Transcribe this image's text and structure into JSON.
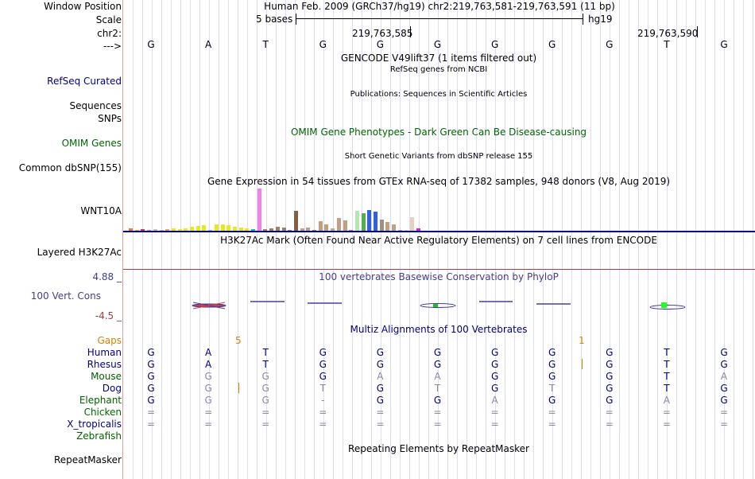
{
  "header": {
    "window_position_label": "Window Position",
    "scale_label": "Scale",
    "chr_label": "chr2:",
    "strand_label": "--->",
    "position_text": "Human Feb. 2009 (GRCh37/hg19)   chr2:219,763,581-219,763,591 (11 bp)",
    "scale_text": "5 bases",
    "assembly": "hg19",
    "coord1": "219,763,585",
    "coord2": "219,763,590"
  },
  "sequence": [
    "G",
    "A",
    "T",
    "G",
    "G",
    "G",
    "G",
    "G",
    "G",
    "T",
    "G"
  ],
  "tracks": {
    "gencode_title": "GENCODE V49lift37 (1 items filtered out)",
    "refseq_sub": "RefSeq genes from NCBI",
    "refseq_label": "RefSeq Curated",
    "pubs_sub": "Publications: Sequences in Scientific Articles",
    "sequences_label": "Sequences",
    "snps_label": "SNPs",
    "omim_title": "OMIM Gene Phenotypes - Dark Green Can Be Disease-causing",
    "omim_label": "OMIM Genes",
    "dbsnp_sub": "Short Genetic Variants from dbSNP release 155",
    "dbsnp_label": "Common dbSNP(155)",
    "gtex_title": "Gene Expression in 54 tissues from GTEx RNA-seq of 17382 samples, 948 donors (V8, Aug 2019)",
    "gtex_label": "WNT10A",
    "h3k27_title": "H3K27Ac Mark (Often Found Near Active Regulatory Elements) on 7 cell lines from ENCODE",
    "h3k27_label": "Layered H3K27Ac",
    "cons_max": "4.88 _",
    "cons_title": "100 vertebrates Basewise Conservation by PhyloP",
    "cons_label": "100 Vert. Cons",
    "cons_min": "-4.5 _",
    "multiz_title": "Multiz Alignments of 100 Vertebrates",
    "gaps_label": "Gaps",
    "gap_a": "5",
    "gap_b": "1",
    "rm_title": "Repeating Elements by RepeatMasker",
    "rm_label": "RepeatMasker"
  },
  "gtex_values": [
    3,
    1,
    2,
    1,
    2,
    1,
    2,
    3,
    2,
    3,
    5,
    6,
    7,
    1,
    8,
    8,
    7,
    5,
    4,
    3,
    2,
    52,
    2,
    3,
    5,
    4,
    1,
    25,
    3,
    4,
    1,
    12,
    8,
    3,
    16,
    13,
    1,
    25,
    22,
    26,
    24,
    14,
    11,
    8,
    1,
    1,
    17,
    3
  ],
  "gtex_colors": [
    "#e08030",
    "#ffb000",
    "#cc3333",
    "#f080a0",
    "#c0c0a0",
    "#c0c0a0",
    "#dda080",
    "#e8e820",
    "#e8e820",
    "#e8e820",
    "#e8e820",
    "#e8e820",
    "#e8e820",
    "#b0b0ff",
    "#e8e820",
    "#e8e820",
    "#e8e820",
    "#e8e820",
    "#e8e820",
    "#e8e820",
    "#00c0c0",
    "#ee82ee",
    "#a08060",
    "#a08060",
    "#a08060",
    "#a08060",
    "#a08060",
    "#806040",
    "#c0a080",
    "#c0a080",
    "#a08060",
    "#c0a080",
    "#c0a080",
    "#b0b090",
    "#c0a080",
    "#c0a080",
    "#ff60a0",
    "#b0e8b0",
    "#50b050",
    "#3060e0",
    "#3060e0",
    "#a09080",
    "#c0a080",
    "#c0a080",
    "#c0a080",
    "#ffd0d0",
    "#e8d0c0",
    "#dd22cc"
  ],
  "species": [
    {
      "name": "Human",
      "color": "#000080",
      "bases": [
        "G",
        "A",
        "T",
        "G",
        "G",
        "G",
        "G",
        "G",
        "G",
        "T",
        "G"
      ]
    },
    {
      "name": "Rhesus",
      "color": "#000080",
      "bases": [
        "G",
        "A",
        "T",
        "G",
        "G",
        "G",
        "G",
        "G",
        "G",
        "T",
        "G"
      ]
    },
    {
      "name": "Mouse",
      "color": "#006400",
      "bases": [
        "G",
        "G",
        "G",
        "G",
        "A",
        "A",
        "G",
        "G",
        "G",
        "T",
        "A"
      ]
    },
    {
      "name": "Dog",
      "color": "#000080",
      "bases": [
        "G",
        "G",
        "G",
        "T",
        "G",
        "T",
        "G",
        "T",
        "G",
        "T",
        "G"
      ]
    },
    {
      "name": "Elephant",
      "color": "#006400",
      "bases": [
        "G",
        "G",
        "G",
        "-",
        "G",
        "G",
        "A",
        "G",
        "G",
        "A",
        "G"
      ]
    },
    {
      "name": "Chicken",
      "color": "#006400",
      "bases": [
        "=",
        "=",
        "=",
        "=",
        "=",
        "=",
        "=",
        "=",
        "=",
        "=",
        "="
      ]
    },
    {
      "name": "X_tropicalis",
      "color": "#000080",
      "bases": [
        "=",
        "=",
        "=",
        "=",
        "=",
        "=",
        "=",
        "=",
        "=",
        "=",
        "="
      ]
    },
    {
      "name": "Zebrafish",
      "color": "#006400",
      "bases": [
        "",
        "",
        "",
        "",
        "",
        "",
        "",
        "",
        "",
        "",
        ""
      ]
    }
  ],
  "species_gray": [
    [
      0,
      0,
      0,
      0,
      0,
      0,
      0,
      0,
      0,
      0,
      0
    ],
    [
      0,
      0,
      0,
      0,
      0,
      0,
      0,
      0,
      0,
      0,
      0
    ],
    [
      0,
      1,
      1,
      0,
      1,
      1,
      0,
      0,
      0,
      0,
      1
    ],
    [
      0,
      1,
      1,
      1,
      0,
      1,
      0,
      1,
      0,
      0,
      0
    ],
    [
      0,
      1,
      1,
      1,
      0,
      0,
      1,
      0,
      0,
      1,
      0
    ],
    [
      1,
      1,
      1,
      1,
      1,
      1,
      1,
      1,
      1,
      1,
      1
    ],
    [
      1,
      1,
      1,
      1,
      1,
      1,
      1,
      1,
      1,
      1,
      1
    ],
    [
      0,
      0,
      0,
      0,
      0,
      0,
      0,
      0,
      0,
      0,
      0
    ]
  ]
}
